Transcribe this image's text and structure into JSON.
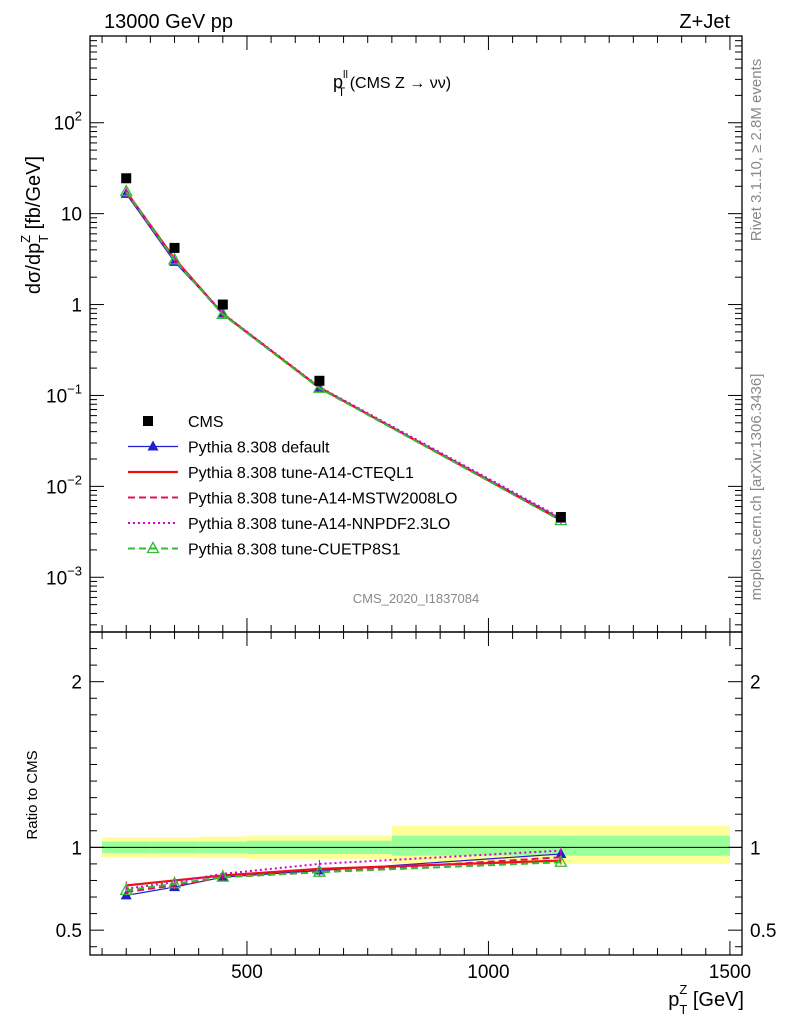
{
  "header": {
    "left": "13000 GeV pp",
    "right": "Z+Jet"
  },
  "side_text": {
    "rivet": "Rivet 3.1.10, ≥ 2.8M events",
    "mcplots": "mcplots.cern.ch [arXiv:1306.3436]"
  },
  "watermark": "CMS_2020_I1837084",
  "chart_data": [
    {
      "type": "line",
      "title_main": "p",
      "title_sup": "ll",
      "title_sub": "T",
      "title_rest": " (CMS Z → νν)",
      "ylabel": {
        "prefix": "dσ/dp",
        "sub": "T",
        "sup": "Z",
        "suffix": " [fb/GeV]"
      },
      "xlim": [
        175,
        1525
      ],
      "ylim": [
        0.00025,
        900
      ],
      "yscale": "log",
      "yticks": [
        {
          "v": 0.001,
          "base": "10",
          "exp": "−3"
        },
        {
          "v": 0.01,
          "base": "10",
          "exp": "−2"
        },
        {
          "v": 0.1,
          "base": "10",
          "exp": "−1"
        },
        {
          "v": 1,
          "base": "1",
          "exp": ""
        },
        {
          "v": 10,
          "base": "10",
          "exp": ""
        },
        {
          "v": 100,
          "base": "10",
          "exp": "2"
        }
      ],
      "x": [
        250,
        350,
        450,
        650,
        1150
      ],
      "cms": {
        "name": "CMS",
        "values": [
          24.5,
          4.2,
          1.0,
          0.145,
          0.0046
        ],
        "color": "#000000"
      },
      "series": [
        {
          "name": "Pythia 8.308 default",
          "values": [
            16.5,
            2.95,
            0.8,
            0.122,
            0.0044
          ],
          "color": "#1f1fd0",
          "style": "solid-triangle"
        },
        {
          "name": "Pythia 8.308 tune-A14-CTEQL1",
          "values": [
            17.5,
            3.2,
            0.79,
            0.122,
            0.00425
          ],
          "color": "#ee1111",
          "style": "solid"
        },
        {
          "name": "Pythia 8.308 tune-A14-MSTW2008LO",
          "values": [
            17.0,
            3.1,
            0.78,
            0.121,
            0.0043
          ],
          "color": "#e0115f",
          "style": "dashed"
        },
        {
          "name": "Pythia 8.308 tune-A14-NNPDF2.3LO",
          "values": [
            17.2,
            3.15,
            0.8,
            0.124,
            0.0045
          ],
          "color": "#d400d4",
          "style": "dotted"
        },
        {
          "name": "Pythia 8.308 tune-CUETP8S1",
          "values": [
            17.5,
            3.1,
            0.78,
            0.12,
            0.0042
          ],
          "color": "#33bb33",
          "style": "dashed-open-triangle"
        }
      ],
      "legend_position": "lower-left"
    },
    {
      "type": "line",
      "ylabel": "Ratio to CMS",
      "xlabel_prefix": "p",
      "xlabel_sub": "T",
      "xlabel_sup": "Z",
      "xlabel_suffix": " [GeV]",
      "xlim": [
        175,
        1525
      ],
      "ylim": [
        0.35,
        2.3
      ],
      "yticks": [
        0.5,
        1,
        2
      ],
      "ytick_labels": [
        "0.5",
        "1",
        "2"
      ],
      "xticks": [
        500,
        1000,
        1500
      ],
      "xtick_labels": [
        "500",
        "1000",
        "1500"
      ],
      "bands": [
        {
          "x0": 200,
          "x1": 300,
          "yellow": [
            0.94,
            1.06
          ],
          "green": [
            0.965,
            1.035
          ]
        },
        {
          "x0": 300,
          "x1": 400,
          "yellow": [
            0.94,
            1.06
          ],
          "green": [
            0.965,
            1.035
          ]
        },
        {
          "x0": 400,
          "x1": 500,
          "yellow": [
            0.935,
            1.065
          ],
          "green": [
            0.965,
            1.035
          ]
        },
        {
          "x0": 500,
          "x1": 800,
          "yellow": [
            0.93,
            1.07
          ],
          "green": [
            0.96,
            1.04
          ]
        },
        {
          "x0": 800,
          "x1": 1500,
          "yellow": [
            0.9,
            1.13
          ],
          "green": [
            0.95,
            1.07
          ]
        }
      ],
      "x": [
        250,
        350,
        450,
        650,
        1150
      ],
      "series": [
        {
          "name": "Pythia 8.308 default",
          "values": [
            0.71,
            0.76,
            0.82,
            0.86,
            0.96
          ],
          "color": "#1f1fd0",
          "style": "solid-triangle"
        },
        {
          "name": "Pythia 8.308 tune-A14-CTEQL1",
          "values": [
            0.77,
            0.8,
            0.83,
            0.87,
            0.92
          ],
          "color": "#ee1111",
          "style": "solid"
        },
        {
          "name": "Pythia 8.308 tune-A14-MSTW2008LO",
          "values": [
            0.73,
            0.77,
            0.82,
            0.85,
            0.94
          ],
          "color": "#e0115f",
          "style": "dashed"
        },
        {
          "name": "Pythia 8.308 tune-A14-NNPDF2.3LO",
          "values": [
            0.75,
            0.79,
            0.84,
            0.9,
            0.98
          ],
          "color": "#d400d4",
          "style": "dotted"
        },
        {
          "name": "Pythia 8.308 tune-CUETP8S1",
          "values": [
            0.74,
            0.78,
            0.82,
            0.85,
            0.91
          ],
          "color": "#33bb33",
          "style": "dashed-open-triangle"
        }
      ]
    }
  ]
}
